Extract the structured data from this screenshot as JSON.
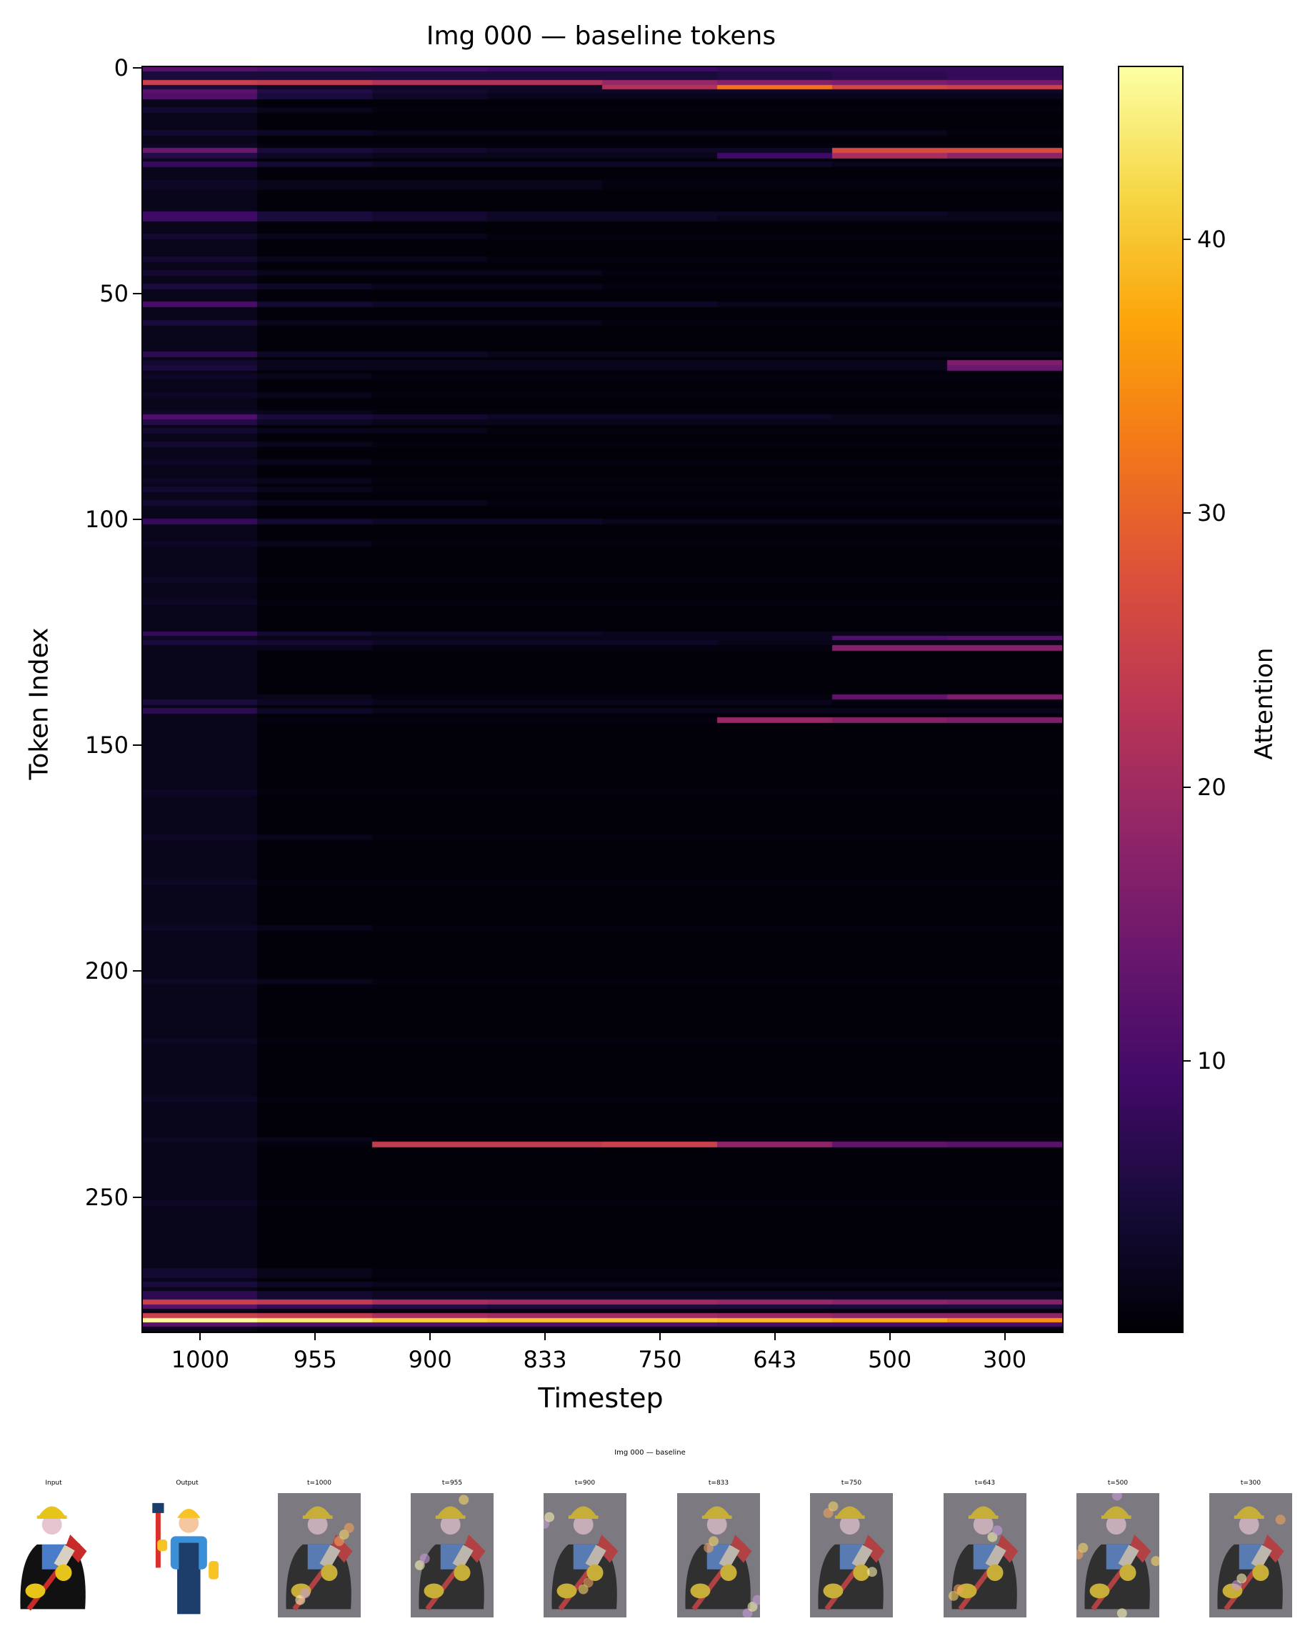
{
  "chart_data": {
    "type": "heatmap",
    "title": "Img 000 — baseline tokens",
    "xlabel": "Timestep",
    "ylabel": "Token Index",
    "colorbar_label": "Attention",
    "colormap": "inferno",
    "vmin": 0.1,
    "vmax": 46.3,
    "x_categories": [
      "1000",
      "955",
      "900",
      "833",
      "750",
      "643",
      "500",
      "300"
    ],
    "y_ticks": [
      0,
      50,
      100,
      150,
      200,
      250
    ],
    "y_range": [
      0,
      279
    ],
    "colorbar_ticks": [
      10,
      20,
      30,
      40
    ],
    "background_value": 0.6,
    "first_column_baseline": 2.0,
    "rows": [
      {
        "token": 0,
        "values": [
          12,
          11,
          10,
          9,
          9,
          8,
          8,
          8
        ]
      },
      {
        "token": 1,
        "values": [
          5,
          5,
          5,
          5,
          5,
          6,
          7,
          8
        ]
      },
      {
        "token": 2,
        "values": [
          5,
          5,
          5,
          5,
          5,
          6,
          7,
          8
        ]
      },
      {
        "token": 3,
        "values": [
          25,
          24,
          22,
          22,
          19,
          17,
          16,
          15
        ]
      },
      {
        "token": 4,
        "values": [
          5,
          3,
          3,
          3,
          22,
          32,
          26,
          25
        ]
      },
      {
        "token": 5,
        "values": [
          12,
          6,
          4,
          3,
          3,
          3,
          3,
          3
        ]
      },
      {
        "token": 6,
        "values": [
          11,
          5,
          3,
          2,
          2,
          2,
          2,
          2
        ]
      },
      {
        "token": 9,
        "values": [
          4,
          2,
          1,
          1,
          1,
          1,
          1,
          1
        ]
      },
      {
        "token": 14,
        "values": [
          4,
          3,
          2,
          2,
          2,
          2,
          2,
          1
        ]
      },
      {
        "token": 17,
        "values": [
          3,
          1,
          1,
          1,
          1,
          1,
          1,
          1
        ]
      },
      {
        "token": 18,
        "values": [
          14,
          5,
          4,
          3,
          3,
          3,
          27,
          27
        ]
      },
      {
        "token": 19,
        "values": [
          6,
          3,
          2,
          2,
          2,
          9,
          21,
          18
        ]
      },
      {
        "token": 21,
        "values": [
          8,
          4,
          3,
          3,
          3,
          3,
          2,
          2
        ]
      },
      {
        "token": 25,
        "values": [
          3,
          2,
          2,
          2,
          1,
          1,
          1,
          1
        ]
      },
      {
        "token": 26,
        "values": [
          3,
          2,
          2,
          2,
          1,
          1,
          1,
          1
        ]
      },
      {
        "token": 32,
        "values": [
          9,
          5,
          4,
          3,
          3,
          3,
          3,
          2
        ]
      },
      {
        "token": 33,
        "values": [
          9,
          5,
          4,
          3,
          3,
          2,
          2,
          2
        ]
      },
      {
        "token": 37,
        "values": [
          4,
          2,
          2,
          1,
          1,
          1,
          1,
          1
        ]
      },
      {
        "token": 42,
        "values": [
          4,
          2,
          2,
          1,
          1,
          1,
          1,
          1
        ]
      },
      {
        "token": 45,
        "values": [
          4,
          2,
          2,
          2,
          1,
          1,
          1,
          1
        ]
      },
      {
        "token": 48,
        "values": [
          5,
          3,
          2,
          2,
          1,
          1,
          1,
          1
        ]
      },
      {
        "token": 52,
        "values": [
          10,
          4,
          3,
          3,
          3,
          2,
          2,
          2
        ]
      },
      {
        "token": 56,
        "values": [
          5,
          2,
          2,
          2,
          1,
          1,
          1,
          1
        ]
      },
      {
        "token": 63,
        "values": [
          7,
          3,
          3,
          2,
          2,
          2,
          2,
          2
        ]
      },
      {
        "token": 65,
        "values": [
          4,
          2,
          2,
          2,
          2,
          2,
          2,
          16
        ]
      },
      {
        "token": 66,
        "values": [
          5,
          2,
          2,
          2,
          2,
          2,
          2,
          14
        ]
      },
      {
        "token": 68,
        "values": [
          3,
          2,
          1,
          1,
          1,
          1,
          1,
          1
        ]
      },
      {
        "token": 72,
        "values": [
          3,
          2,
          1,
          1,
          1,
          1,
          1,
          1
        ]
      },
      {
        "token": 76,
        "values": [
          3,
          2,
          1,
          1,
          1,
          1,
          1,
          1
        ]
      },
      {
        "token": 77,
        "values": [
          11,
          5,
          4,
          3,
          3,
          3,
          2,
          2
        ]
      },
      {
        "token": 78,
        "values": [
          6,
          3,
          2,
          2,
          2,
          2,
          2,
          2
        ]
      },
      {
        "token": 80,
        "values": [
          4,
          2,
          2,
          1,
          1,
          1,
          1,
          1
        ]
      },
      {
        "token": 83,
        "values": [
          4,
          2,
          1,
          1,
          1,
          1,
          1,
          1
        ]
      },
      {
        "token": 87,
        "values": [
          3,
          2,
          1,
          1,
          1,
          1,
          1,
          1
        ]
      },
      {
        "token": 91,
        "values": [
          3,
          2,
          1,
          1,
          1,
          1,
          1,
          1
        ]
      },
      {
        "token": 93,
        "values": [
          4,
          2,
          1,
          1,
          1,
          1,
          1,
          1
        ]
      },
      {
        "token": 96,
        "values": [
          4,
          2,
          2,
          1,
          1,
          1,
          1,
          1
        ]
      },
      {
        "token": 100,
        "values": [
          8,
          4,
          3,
          3,
          2,
          2,
          2,
          2
        ]
      },
      {
        "token": 105,
        "values": [
          3,
          2,
          1,
          1,
          1,
          1,
          1,
          1
        ]
      },
      {
        "token": 113,
        "values": [
          3,
          1,
          1,
          1,
          1,
          1,
          1,
          1
        ]
      },
      {
        "token": 118,
        "values": [
          3,
          1,
          1,
          1,
          1,
          1,
          1,
          1
        ]
      },
      {
        "token": 125,
        "values": [
          8,
          4,
          3,
          3,
          2,
          2,
          2,
          2
        ]
      },
      {
        "token": 126,
        "values": [
          3,
          2,
          2,
          2,
          2,
          2,
          11,
          12
        ]
      },
      {
        "token": 127,
        "values": [
          5,
          4,
          3,
          3,
          3,
          2,
          2,
          2
        ]
      },
      {
        "token": 128,
        "values": [
          2,
          2,
          1,
          1,
          1,
          1,
          17,
          17
        ]
      },
      {
        "token": 139,
        "values": [
          2,
          2,
          1,
          1,
          1,
          1,
          13,
          16
        ]
      },
      {
        "token": 140,
        "values": [
          5,
          3,
          2,
          2,
          2,
          2,
          1,
          1
        ]
      },
      {
        "token": 142,
        "values": [
          7,
          3,
          2,
          2,
          2,
          2,
          2,
          2
        ]
      },
      {
        "token": 144,
        "values": [
          2,
          1,
          1,
          1,
          1,
          19,
          17,
          16
        ]
      },
      {
        "token": 160,
        "values": [
          3,
          1,
          1,
          1,
          1,
          1,
          1,
          1
        ]
      },
      {
        "token": 170,
        "values": [
          3,
          2,
          1,
          1,
          1,
          1,
          1,
          1
        ]
      },
      {
        "token": 180,
        "values": [
          3,
          1,
          1,
          1,
          1,
          1,
          1,
          1
        ]
      },
      {
        "token": 190,
        "values": [
          3,
          2,
          1,
          1,
          1,
          1,
          1,
          1
        ]
      },
      {
        "token": 202,
        "values": [
          3,
          2,
          1,
          1,
          1,
          1,
          1,
          1
        ]
      },
      {
        "token": 215,
        "values": [
          3,
          1,
          1,
          1,
          1,
          1,
          1,
          1
        ]
      },
      {
        "token": 228,
        "values": [
          3,
          1,
          1,
          1,
          1,
          1,
          1,
          1
        ]
      },
      {
        "token": 237,
        "values": [
          3,
          2,
          1,
          1,
          1,
          1,
          1,
          1
        ]
      },
      {
        "token": 238,
        "values": [
          2,
          1,
          24,
          24,
          25,
          18,
          13,
          12
        ]
      },
      {
        "token": 251,
        "values": [
          3,
          1,
          1,
          1,
          1,
          1,
          1,
          1
        ]
      },
      {
        "token": 266,
        "values": [
          4,
          2,
          1,
          1,
          1,
          1,
          1,
          1
        ]
      },
      {
        "token": 267,
        "values": [
          4,
          2,
          1,
          1,
          1,
          1,
          1,
          1
        ]
      },
      {
        "token": 269,
        "values": [
          5,
          3,
          2,
          2,
          2,
          2,
          2,
          2
        ]
      },
      {
        "token": 271,
        "values": [
          7,
          4,
          3,
          3,
          3,
          3,
          3,
          3
        ]
      },
      {
        "token": 272,
        "values": [
          7,
          4,
          3,
          3,
          3,
          3,
          3,
          3
        ]
      },
      {
        "token": 273,
        "values": [
          25,
          24,
          21,
          20,
          20,
          19,
          18,
          17
        ]
      },
      {
        "token": 274,
        "values": [
          12,
          8,
          6,
          5,
          5,
          5,
          5,
          5
        ]
      },
      {
        "token": 275,
        "values": [
          2,
          1,
          1,
          1,
          1,
          1,
          1,
          1
        ]
      },
      {
        "token": 276,
        "values": [
          25,
          24,
          21,
          20,
          20,
          19,
          18,
          18
        ]
      },
      {
        "token": 277,
        "values": [
          46,
          44,
          41,
          40,
          40,
          39,
          38,
          35
        ]
      },
      {
        "token": 278,
        "values": [
          12,
          11,
          11,
          11,
          11,
          10,
          10,
          10
        ]
      },
      {
        "token": 279,
        "values": [
          2,
          1,
          1,
          1,
          1,
          1,
          1,
          1
        ]
      }
    ]
  },
  "strip": {
    "title": "Img 000 — baseline",
    "panels": [
      {
        "label": "Input",
        "kind": "input"
      },
      {
        "label": "Output",
        "kind": "output"
      },
      {
        "label": "t=1000",
        "kind": "overlay"
      },
      {
        "label": "t=955",
        "kind": "overlay"
      },
      {
        "label": "t=900",
        "kind": "overlay"
      },
      {
        "label": "t=833",
        "kind": "overlay"
      },
      {
        "label": "t=750",
        "kind": "overlay"
      },
      {
        "label": "t=643",
        "kind": "overlay"
      },
      {
        "label": "t=500",
        "kind": "overlay"
      },
      {
        "label": "t=300",
        "kind": "overlay"
      }
    ]
  },
  "colors": {
    "plot_background": "#000004",
    "frame": "#000000"
  }
}
